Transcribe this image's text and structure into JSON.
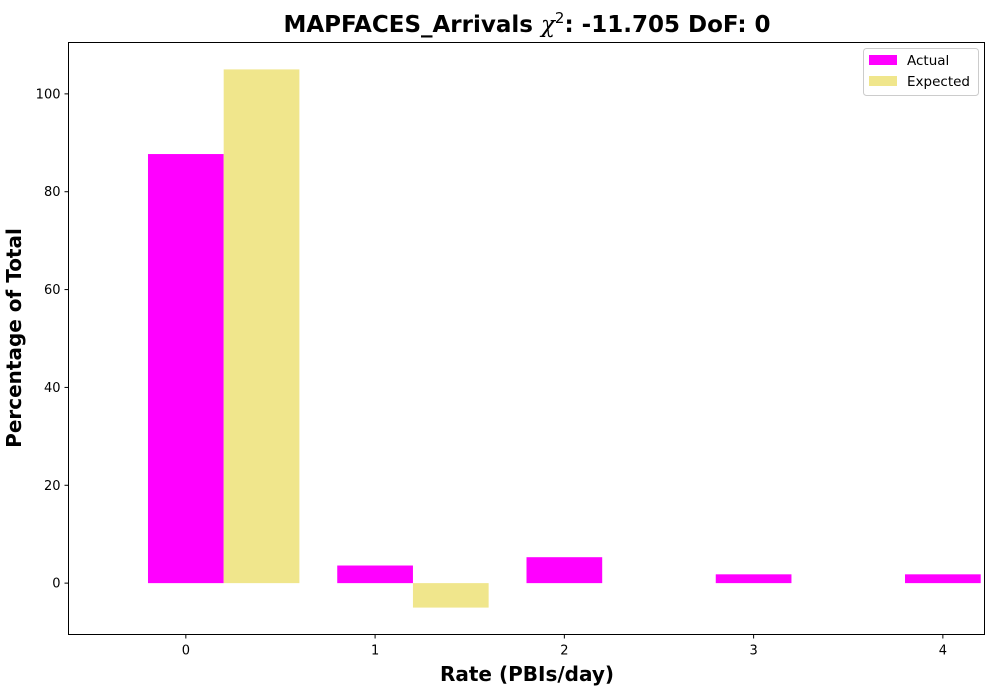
{
  "chart_data": {
    "type": "bar",
    "title_prefix": "MAPFACES_Arrivals ",
    "title_symbol": "χ",
    "title_exponent": "2",
    "title_suffix": ": -11.705 DoF: 0",
    "xlabel": "Rate (PBIs/day)",
    "ylabel": "Percentage of Total",
    "categories": [
      "0",
      "1",
      "2",
      "3",
      "4"
    ],
    "x": [
      0,
      1,
      2,
      3,
      4
    ],
    "xlim": [
      -0.62,
      4.22
    ],
    "ylim": [
      -10.5,
      110.5
    ],
    "yticks": [
      0,
      20,
      40,
      60,
      80,
      100
    ],
    "bar_width": 0.4,
    "grid": false,
    "legend_position": "top-right",
    "series": [
      {
        "name": "Actual",
        "color": "#ff00ff",
        "offset": 0.0,
        "values": [
          87.7,
          3.6,
          5.3,
          1.8,
          1.8
        ]
      },
      {
        "name": "Expected",
        "color": "#f0e68c",
        "offset": 0.4,
        "values": [
          105.0,
          -5.0,
          0,
          0,
          0
        ]
      }
    ]
  }
}
